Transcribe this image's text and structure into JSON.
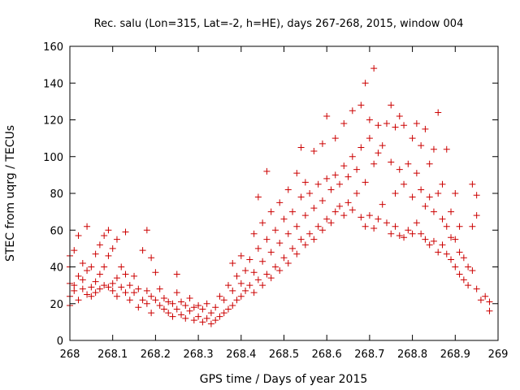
{
  "chart_data": {
    "type": "scatter",
    "title": "Rec. salu (Lon=315, Lat=-2, h=HE), days 267-268, 2015, window 004",
    "xlabel": "GPS time / Days of year 2015",
    "ylabel": "STEC from uqrg / TECUs",
    "xlim": [
      268,
      269
    ],
    "ylim": [
      0,
      160
    ],
    "xticks": [
      268,
      268.1,
      268.2,
      268.3,
      268.4,
      268.5,
      268.6,
      268.7,
      268.8,
      268.9,
      269
    ],
    "xtick_labels": [
      "268",
      "268.1",
      "268.2",
      "268.3",
      "268.4",
      "268.5",
      "268.6",
      "268.7",
      "268.8",
      "268.9",
      "269"
    ],
    "yticks": [
      0,
      20,
      40,
      60,
      80,
      100,
      120,
      140,
      160
    ],
    "ytick_labels": [
      "0",
      "20",
      "40",
      "60",
      "80",
      "100",
      "120",
      "140",
      "160"
    ],
    "marker": "+",
    "color": "#cc0000",
    "grid": false,
    "series": [
      {
        "name": "observations",
        "points": [
          [
            268.0,
            19
          ],
          [
            268.0,
            24
          ],
          [
            268.0,
            31
          ],
          [
            268.0,
            40
          ],
          [
            268.0,
            46
          ],
          [
            268.01,
            49
          ],
          [
            268.01,
            30
          ],
          [
            268.01,
            27
          ],
          [
            268.02,
            22
          ],
          [
            268.02,
            35
          ],
          [
            268.02,
            57
          ],
          [
            268.03,
            33
          ],
          [
            268.03,
            42
          ],
          [
            268.03,
            28
          ],
          [
            268.04,
            25
          ],
          [
            268.04,
            38
          ],
          [
            268.04,
            62
          ],
          [
            268.05,
            24
          ],
          [
            268.05,
            29
          ],
          [
            268.05,
            40
          ],
          [
            268.06,
            26
          ],
          [
            268.06,
            32
          ],
          [
            268.06,
            47
          ],
          [
            268.07,
            28
          ],
          [
            268.07,
            36
          ],
          [
            268.07,
            52
          ],
          [
            268.08,
            30
          ],
          [
            268.08,
            40
          ],
          [
            268.08,
            57
          ],
          [
            268.09,
            29
          ],
          [
            268.09,
            46
          ],
          [
            268.09,
            60
          ],
          [
            268.1,
            27
          ],
          [
            268.1,
            31
          ],
          [
            268.1,
            50
          ],
          [
            268.11,
            24
          ],
          [
            268.11,
            34
          ],
          [
            268.11,
            55
          ],
          [
            268.12,
            29
          ],
          [
            268.12,
            40
          ],
          [
            268.13,
            26
          ],
          [
            268.13,
            36
          ],
          [
            268.13,
            59
          ],
          [
            268.14,
            22
          ],
          [
            268.14,
            30
          ],
          [
            268.15,
            26
          ],
          [
            268.15,
            35
          ],
          [
            268.16,
            18
          ],
          [
            268.16,
            28
          ],
          [
            268.17,
            22
          ],
          [
            268.17,
            49
          ],
          [
            268.18,
            20
          ],
          [
            268.18,
            27
          ],
          [
            268.18,
            60
          ],
          [
            268.19,
            15
          ],
          [
            268.19,
            24
          ],
          [
            268.19,
            45
          ],
          [
            268.2,
            22
          ],
          [
            268.2,
            37
          ],
          [
            268.21,
            19
          ],
          [
            268.21,
            28
          ],
          [
            268.22,
            17
          ],
          [
            268.22,
            23
          ],
          [
            268.23,
            15
          ],
          [
            268.23,
            21
          ],
          [
            268.24,
            13
          ],
          [
            268.24,
            20
          ],
          [
            268.25,
            17
          ],
          [
            268.25,
            26
          ],
          [
            268.25,
            36
          ],
          [
            268.26,
            14
          ],
          [
            268.26,
            21
          ],
          [
            268.27,
            12
          ],
          [
            268.27,
            19
          ],
          [
            268.28,
            16
          ],
          [
            268.28,
            23
          ],
          [
            268.29,
            11
          ],
          [
            268.29,
            18
          ],
          [
            268.3,
            13
          ],
          [
            268.3,
            19
          ],
          [
            268.31,
            10
          ],
          [
            268.31,
            17
          ],
          [
            268.32,
            12
          ],
          [
            268.32,
            20
          ],
          [
            268.33,
            9
          ],
          [
            268.33,
            15
          ],
          [
            268.34,
            11
          ],
          [
            268.34,
            18
          ],
          [
            268.35,
            13
          ],
          [
            268.35,
            24
          ],
          [
            268.36,
            15
          ],
          [
            268.36,
            22
          ],
          [
            268.37,
            17
          ],
          [
            268.37,
            30
          ],
          [
            268.38,
            19
          ],
          [
            268.38,
            27
          ],
          [
            268.38,
            42
          ],
          [
            268.39,
            22
          ],
          [
            268.39,
            35
          ],
          [
            268.4,
            24
          ],
          [
            268.4,
            31
          ],
          [
            268.4,
            46
          ],
          [
            268.41,
            27
          ],
          [
            268.41,
            38
          ],
          [
            268.42,
            30
          ],
          [
            268.42,
            44
          ],
          [
            268.43,
            26
          ],
          [
            268.43,
            37
          ],
          [
            268.43,
            58
          ],
          [
            268.44,
            33
          ],
          [
            268.44,
            50
          ],
          [
            268.44,
            78
          ],
          [
            268.45,
            30
          ],
          [
            268.45,
            43
          ],
          [
            268.45,
            64
          ],
          [
            268.46,
            36
          ],
          [
            268.46,
            55
          ],
          [
            268.46,
            92
          ],
          [
            268.47,
            34
          ],
          [
            268.47,
            48
          ],
          [
            268.47,
            70
          ],
          [
            268.48,
            40
          ],
          [
            268.48,
            60
          ],
          [
            268.49,
            38
          ],
          [
            268.49,
            53
          ],
          [
            268.49,
            75
          ],
          [
            268.5,
            45
          ],
          [
            268.5,
            66
          ],
          [
            268.51,
            42
          ],
          [
            268.51,
            58
          ],
          [
            268.51,
            82
          ],
          [
            268.52,
            50
          ],
          [
            268.52,
            70
          ],
          [
            268.53,
            47
          ],
          [
            268.53,
            62
          ],
          [
            268.53,
            91
          ],
          [
            268.54,
            55
          ],
          [
            268.54,
            78
          ],
          [
            268.54,
            105
          ],
          [
            268.55,
            52
          ],
          [
            268.55,
            68
          ],
          [
            268.55,
            86
          ],
          [
            268.56,
            58
          ],
          [
            268.56,
            80
          ],
          [
            268.57,
            55
          ],
          [
            268.57,
            72
          ],
          [
            268.57,
            103
          ],
          [
            268.58,
            62
          ],
          [
            268.58,
            85
          ],
          [
            268.59,
            60
          ],
          [
            268.59,
            76
          ],
          [
            268.59,
            107
          ],
          [
            268.6,
            66
          ],
          [
            268.6,
            88
          ],
          [
            268.6,
            122
          ],
          [
            268.61,
            64
          ],
          [
            268.61,
            82
          ],
          [
            268.62,
            70
          ],
          [
            268.62,
            90
          ],
          [
            268.62,
            110
          ],
          [
            268.63,
            73
          ],
          [
            268.63,
            85
          ],
          [
            268.64,
            68
          ],
          [
            268.64,
            95
          ],
          [
            268.64,
            118
          ],
          [
            268.65,
            75
          ],
          [
            268.65,
            89
          ],
          [
            268.66,
            71
          ],
          [
            268.66,
            100
          ],
          [
            268.66,
            125
          ],
          [
            268.67,
            80
          ],
          [
            268.67,
            93
          ],
          [
            268.68,
            67
          ],
          [
            268.68,
            105
          ],
          [
            268.68,
            128
          ],
          [
            268.69,
            62
          ],
          [
            268.69,
            86
          ],
          [
            268.69,
            140
          ],
          [
            268.7,
            68
          ],
          [
            268.7,
            110
          ],
          [
            268.7,
            120
          ],
          [
            268.71,
            61
          ],
          [
            268.71,
            96
          ],
          [
            268.71,
            148
          ],
          [
            268.72,
            66
          ],
          [
            268.72,
            102
          ],
          [
            268.72,
            117
          ],
          [
            268.73,
            74
          ],
          [
            268.73,
            106
          ],
          [
            268.74,
            64
          ],
          [
            268.74,
            118
          ],
          [
            268.75,
            58
          ],
          [
            268.75,
            97
          ],
          [
            268.75,
            128
          ],
          [
            268.76,
            62
          ],
          [
            268.76,
            80
          ],
          [
            268.76,
            116
          ],
          [
            268.77,
            57
          ],
          [
            268.77,
            93
          ],
          [
            268.77,
            122
          ],
          [
            268.78,
            56
          ],
          [
            268.78,
            85
          ],
          [
            268.78,
            117
          ],
          [
            268.79,
            60
          ],
          [
            268.79,
            96
          ],
          [
            268.8,
            58
          ],
          [
            268.8,
            78
          ],
          [
            268.8,
            110
          ],
          [
            268.81,
            64
          ],
          [
            268.81,
            91
          ],
          [
            268.81,
            118
          ],
          [
            268.82,
            58
          ],
          [
            268.82,
            82
          ],
          [
            268.82,
            106
          ],
          [
            268.83,
            55
          ],
          [
            268.83,
            73
          ],
          [
            268.83,
            115
          ],
          [
            268.84,
            52
          ],
          [
            268.84,
            78
          ],
          [
            268.84,
            96
          ],
          [
            268.85,
            54
          ],
          [
            268.85,
            70
          ],
          [
            268.85,
            104
          ],
          [
            268.86,
            48
          ],
          [
            268.86,
            80
          ],
          [
            268.86,
            124
          ],
          [
            268.87,
            52
          ],
          [
            268.87,
            66
          ],
          [
            268.87,
            85
          ],
          [
            268.88,
            47
          ],
          [
            268.88,
            62
          ],
          [
            268.88,
            104
          ],
          [
            268.89,
            44
          ],
          [
            268.89,
            56
          ],
          [
            268.89,
            70
          ],
          [
            268.9,
            40
          ],
          [
            268.9,
            55
          ],
          [
            268.9,
            80
          ],
          [
            268.91,
            36
          ],
          [
            268.91,
            48
          ],
          [
            268.91,
            62
          ],
          [
            268.92,
            33
          ],
          [
            268.92,
            45
          ],
          [
            268.93,
            30
          ],
          [
            268.93,
            40
          ],
          [
            268.94,
            38
          ],
          [
            268.94,
            62
          ],
          [
            268.94,
            85
          ],
          [
            268.95,
            28
          ],
          [
            268.95,
            68
          ],
          [
            268.95,
            79
          ],
          [
            268.96,
            22
          ],
          [
            268.97,
            24
          ],
          [
            268.98,
            16
          ],
          [
            268.98,
            21
          ]
        ]
      }
    ]
  }
}
